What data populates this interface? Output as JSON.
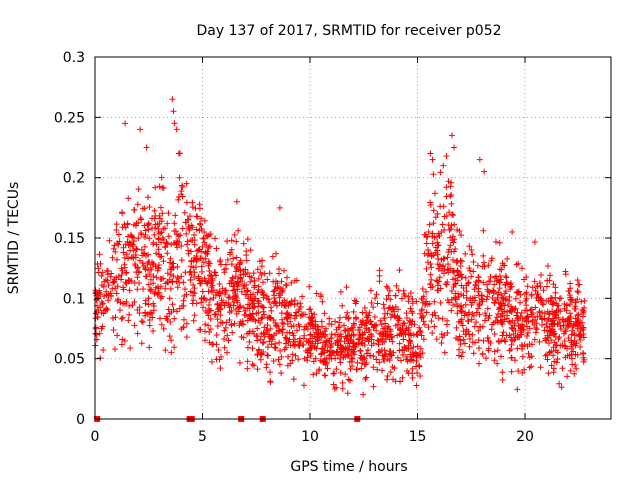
{
  "chart_data": {
    "type": "scatter",
    "title": "Day 137 of 2017, SRMTID for receiver p052",
    "xlabel": "GPS time / hours",
    "ylabel": "SRMTID / TECUs",
    "xlim": [
      0,
      24
    ],
    "ylim": [
      0,
      0.3
    ],
    "xticks": [
      0,
      5,
      10,
      15,
      20
    ],
    "xtick_labels": [
      "0",
      "5",
      "10",
      "15",
      "20"
    ],
    "yticks": [
      0,
      0.05,
      0.1,
      0.15,
      0.2,
      0.25,
      0.3
    ],
    "ytick_labels": [
      "0",
      "0.05",
      "0.1",
      "0.15",
      "0.2",
      "0.25",
      "0.3"
    ],
    "grid": true,
    "marker": "plus",
    "series": [
      {
        "name": "SRMTID",
        "color": "#ff0000",
        "envelope": {
          "description": "approximate median level and scatter half-width of the dense point cloud versus GPS hour",
          "hours": [
            0.0,
            0.5,
            1.0,
            1.5,
            2.0,
            2.5,
            3.0,
            3.5,
            4.0,
            4.5,
            5.0,
            5.5,
            6.0,
            6.5,
            7.0,
            7.5,
            8.0,
            8.5,
            9.0,
            9.5,
            10.0,
            10.5,
            11.0,
            11.5,
            12.0,
            12.5,
            13.0,
            13.5,
            14.0,
            14.5,
            15.0,
            15.5,
            16.0,
            16.5,
            17.0,
            17.5,
            18.0,
            18.5,
            19.0,
            19.5,
            20.0,
            20.5,
            21.0,
            21.5,
            22.0,
            22.5,
            22.8
          ],
          "median": [
            0.09,
            0.1,
            0.11,
            0.13,
            0.13,
            0.12,
            0.13,
            0.12,
            0.14,
            0.13,
            0.12,
            0.1,
            0.09,
            0.11,
            0.1,
            0.09,
            0.08,
            0.09,
            0.08,
            0.07,
            0.07,
            0.065,
            0.06,
            0.06,
            0.065,
            0.065,
            0.08,
            0.07,
            0.07,
            0.065,
            0.065,
            0.13,
            0.13,
            0.14,
            0.1,
            0.1,
            0.1,
            0.09,
            0.09,
            0.08,
            0.08,
            0.09,
            0.08,
            0.07,
            0.08,
            0.07,
            0.075
          ],
          "spread": [
            0.03,
            0.04,
            0.05,
            0.06,
            0.06,
            0.05,
            0.06,
            0.06,
            0.07,
            0.05,
            0.05,
            0.04,
            0.04,
            0.04,
            0.04,
            0.04,
            0.04,
            0.04,
            0.04,
            0.035,
            0.03,
            0.03,
            0.03,
            0.03,
            0.03,
            0.03,
            0.04,
            0.035,
            0.035,
            0.035,
            0.035,
            0.06,
            0.06,
            0.06,
            0.05,
            0.05,
            0.05,
            0.04,
            0.04,
            0.035,
            0.035,
            0.04,
            0.035,
            0.035,
            0.035,
            0.035,
            0.035
          ],
          "point_count": 2400,
          "seed": 1705
        },
        "peaks": [
          {
            "x": 1.4,
            "y": 0.245
          },
          {
            "x": 2.1,
            "y": 0.24
          },
          {
            "x": 2.4,
            "y": 0.225
          },
          {
            "x": 3.6,
            "y": 0.265
          },
          {
            "x": 3.65,
            "y": 0.255
          },
          {
            "x": 3.7,
            "y": 0.245
          },
          {
            "x": 3.8,
            "y": 0.24
          },
          {
            "x": 3.9,
            "y": 0.22
          },
          {
            "x": 3.1,
            "y": 0.2
          },
          {
            "x": 6.6,
            "y": 0.18
          },
          {
            "x": 8.6,
            "y": 0.175
          },
          {
            "x": 15.6,
            "y": 0.22
          },
          {
            "x": 15.7,
            "y": 0.215
          },
          {
            "x": 16.2,
            "y": 0.21
          },
          {
            "x": 16.6,
            "y": 0.235
          },
          {
            "x": 16.7,
            "y": 0.225
          },
          {
            "x": 17.9,
            "y": 0.215
          },
          {
            "x": 18.1,
            "y": 0.205
          },
          {
            "x": 19.4,
            "y": 0.155
          },
          {
            "x": 21.9,
            "y": 0.12
          }
        ],
        "zero_markers": [
          {
            "x": 0.1,
            "y": 0
          },
          {
            "x": 4.4,
            "y": 0
          },
          {
            "x": 4.5,
            "y": 0
          },
          {
            "x": 6.8,
            "y": 0
          },
          {
            "x": 7.8,
            "y": 0
          },
          {
            "x": 12.2,
            "y": 0
          }
        ]
      }
    ]
  }
}
